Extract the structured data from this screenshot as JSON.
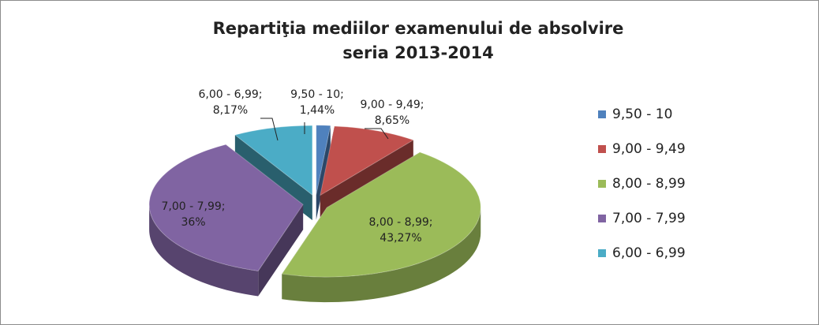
{
  "chart_data": {
    "type": "pie",
    "title": "Repartiţia mediilor examenului de absolvire",
    "subtitle": "seria 2013-2014",
    "categories": [
      "9,50 - 10",
      "9,00 - 9,49",
      "8,00 - 8,99",
      "7,00 - 7,99",
      "6,00 - 6,99"
    ],
    "values": [
      1.44,
      8.65,
      43.27,
      36,
      8.17
    ],
    "value_labels": [
      "1,44%",
      "8,65%",
      "43,27%",
      "36%",
      "8,17%"
    ],
    "data_label_separator": ";",
    "colors": [
      "#4f81bd",
      "#c0504d",
      "#9bbb59",
      "#8064a2",
      "#4bacc6"
    ],
    "legend": "right"
  }
}
